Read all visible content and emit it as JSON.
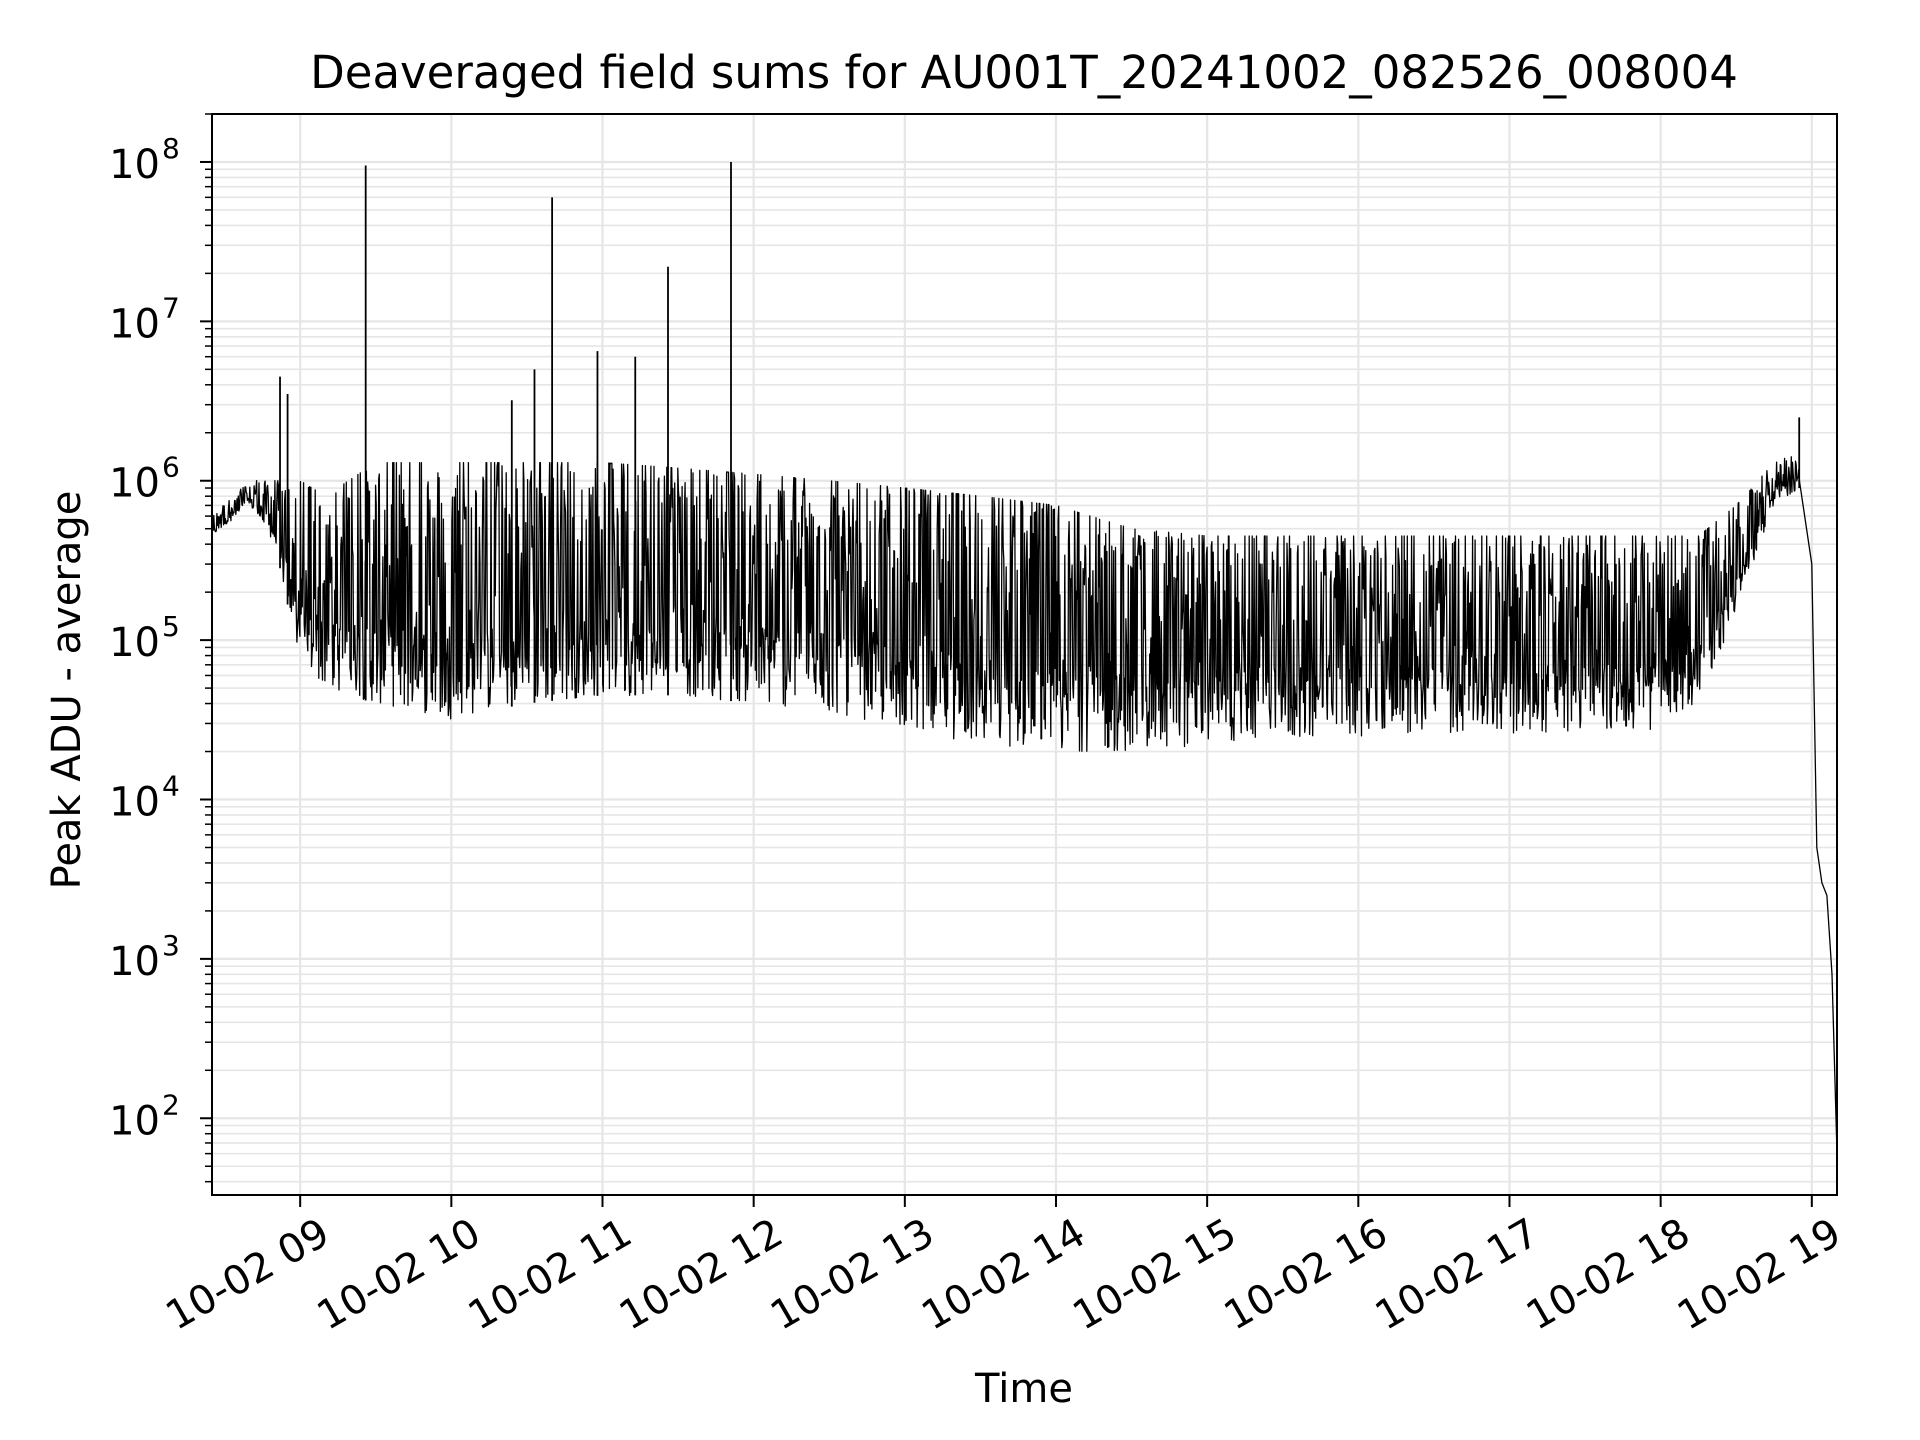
{
  "chart_data": {
    "type": "line",
    "title": "Deaveraged field sums for AU001T_20241002_082526_008004",
    "xlabel": "Time",
    "ylabel": "Peak ADU - average",
    "x_scale": "time",
    "y_scale": "log",
    "xlim": [
      "2024-10-02 08:25",
      "2024-10-02 19:10"
    ],
    "ylim": [
      33,
      200000000
    ],
    "grid": true,
    "x_ticks": [
      {
        "time": "2024-10-02 09:00",
        "label": "10-02 09"
      },
      {
        "time": "2024-10-02 10:00",
        "label": "10-02 10"
      },
      {
        "time": "2024-10-02 11:00",
        "label": "10-02 11"
      },
      {
        "time": "2024-10-02 12:00",
        "label": "10-02 12"
      },
      {
        "time": "2024-10-02 13:00",
        "label": "10-02 13"
      },
      {
        "time": "2024-10-02 14:00",
        "label": "10-02 14"
      },
      {
        "time": "2024-10-02 15:00",
        "label": "10-02 15"
      },
      {
        "time": "2024-10-02 16:00",
        "label": "10-02 16"
      },
      {
        "time": "2024-10-02 17:00",
        "label": "10-02 17"
      },
      {
        "time": "2024-10-02 18:00",
        "label": "10-02 18"
      },
      {
        "time": "2024-10-02 19:00",
        "label": "10-02 19"
      }
    ],
    "y_ticks": [
      {
        "value": 100,
        "base": "10",
        "exp": "2"
      },
      {
        "value": 1000,
        "base": "10",
        "exp": "3"
      },
      {
        "value": 10000,
        "base": "10",
        "exp": "4"
      },
      {
        "value": 100000,
        "base": "10",
        "exp": "5"
      },
      {
        "value": 1000000,
        "base": "10",
        "exp": "6"
      },
      {
        "value": 10000000,
        "base": "10",
        "exp": "7"
      },
      {
        "value": 100000000,
        "base": "10",
        "exp": "8"
      }
    ],
    "series": [
      {
        "color": "#000000",
        "envelope": [
          {
            "time": "2024-10-02 08:25",
            "low": 450000,
            "high": 600000
          },
          {
            "time": "2024-10-02 08:40",
            "low": 700000,
            "high": 1000000
          },
          {
            "time": "2024-10-02 08:50",
            "low": 400000,
            "high": 1000000
          },
          {
            "time": "2024-10-02 09:00",
            "low": 70000,
            "high": 1000000
          },
          {
            "time": "2024-10-02 09:10",
            "low": 50000,
            "high": 800000
          },
          {
            "time": "2024-10-02 09:30",
            "low": 40000,
            "high": 1300000
          },
          {
            "time": "2024-10-02 10:00",
            "low": 32000,
            "high": 1300000
          },
          {
            "time": "2024-10-02 10:30",
            "low": 40000,
            "high": 1300000
          },
          {
            "time": "2024-10-02 11:00",
            "low": 45000,
            "high": 1300000
          },
          {
            "time": "2024-10-02 11:30",
            "low": 45000,
            "high": 1200000
          },
          {
            "time": "2024-10-02 12:00",
            "low": 40000,
            "high": 1100000
          },
          {
            "time": "2024-10-02 12:30",
            "low": 35000,
            "high": 1000000
          },
          {
            "time": "2024-10-02 13:00",
            "low": 28000,
            "high": 900000
          },
          {
            "time": "2024-10-02 13:30",
            "low": 22000,
            "high": 800000
          },
          {
            "time": "2024-10-02 14:00",
            "low": 20000,
            "high": 700000
          },
          {
            "time": "2024-10-02 14:30",
            "low": 20000,
            "high": 500000
          },
          {
            "time": "2024-10-02 15:00",
            "low": 22000,
            "high": 450000
          },
          {
            "time": "2024-10-02 15:30",
            "low": 24000,
            "high": 450000
          },
          {
            "time": "2024-10-02 16:00",
            "low": 25000,
            "high": 450000
          },
          {
            "time": "2024-10-02 16:30",
            "low": 26000,
            "high": 450000
          },
          {
            "time": "2024-10-02 17:00",
            "low": 26000,
            "high": 450000
          },
          {
            "time": "2024-10-02 17:30",
            "low": 26000,
            "high": 450000
          },
          {
            "time": "2024-10-02 18:00",
            "low": 27000,
            "high": 450000
          },
          {
            "time": "2024-10-02 18:15",
            "low": 40000,
            "high": 450000
          },
          {
            "time": "2024-10-02 18:30",
            "low": 150000,
            "high": 700000
          },
          {
            "time": "2024-10-02 18:45",
            "low": 700000,
            "high": 1300000
          },
          {
            "time": "2024-10-02 18:55",
            "low": 900000,
            "high": 1500000
          }
        ],
        "tail": [
          {
            "time": "2024-10-02 19:00",
            "value": 300000
          },
          {
            "time": "2024-10-02 19:02",
            "value": 5000
          },
          {
            "time": "2024-10-02 19:04",
            "value": 3000
          },
          {
            "time": "2024-10-02 19:06",
            "value": 2500
          },
          {
            "time": "2024-10-02 19:08",
            "value": 800
          },
          {
            "time": "2024-10-02 19:10",
            "value": 60
          }
        ],
        "spikes": [
          {
            "time": "2024-10-02 08:52",
            "value": 4500000
          },
          {
            "time": "2024-10-02 08:55",
            "value": 3500000
          },
          {
            "time": "2024-10-02 09:26",
            "value": 95000000
          },
          {
            "time": "2024-10-02 10:24",
            "value": 3200000
          },
          {
            "time": "2024-10-02 10:33",
            "value": 5000000
          },
          {
            "time": "2024-10-02 10:40",
            "value": 60000000
          },
          {
            "time": "2024-10-02 10:58",
            "value": 6500000
          },
          {
            "time": "2024-10-02 11:13",
            "value": 6000000
          },
          {
            "time": "2024-10-02 11:26",
            "value": 22000000
          },
          {
            "time": "2024-10-02 11:51",
            "value": 100000000
          },
          {
            "time": "2024-10-02 18:55",
            "value": 2500000
          }
        ]
      }
    ]
  }
}
